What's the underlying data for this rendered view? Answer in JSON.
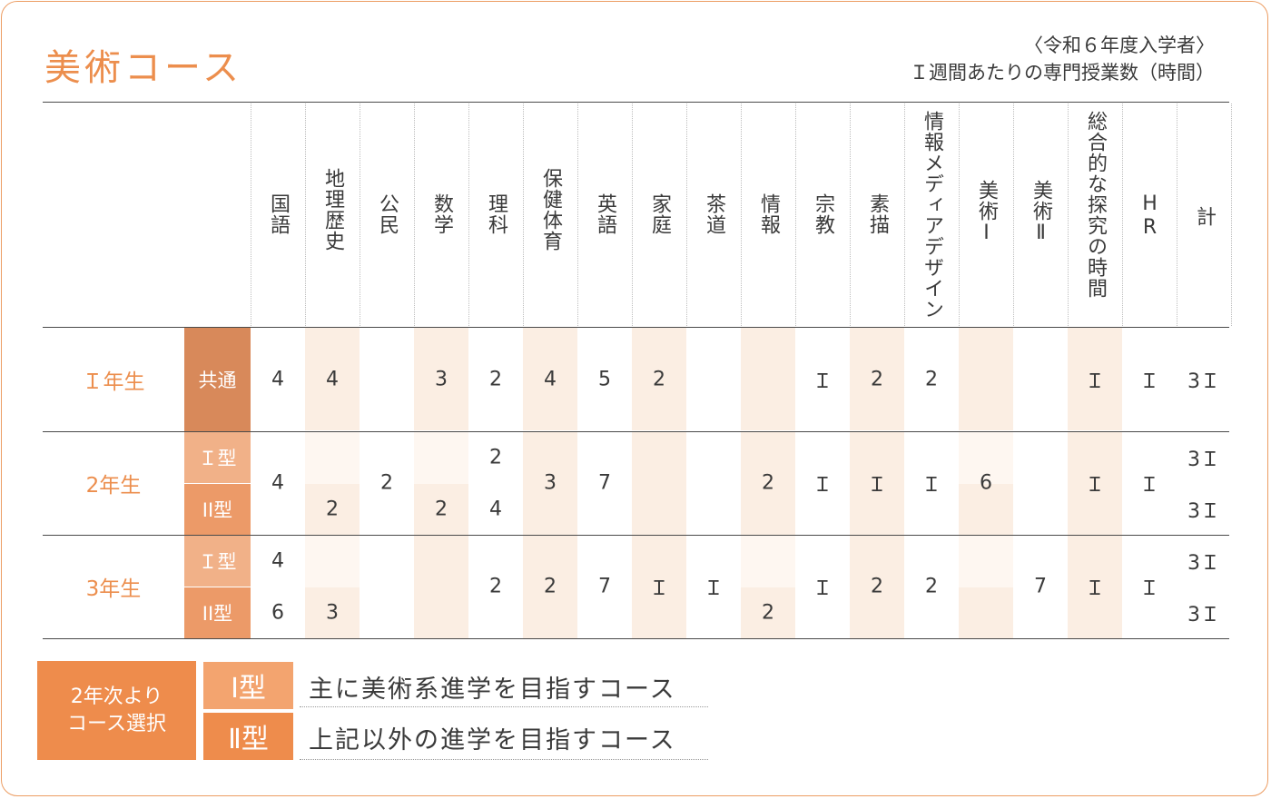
{
  "title": "美術コース",
  "note_line1": "〈令和６年度入学者〉",
  "note_line2": "Ｉ週間あたりの専門授業数（時間）",
  "subjects": [
    "国語",
    "地理歴史",
    "公民",
    "数学",
    "理科",
    "保健体育",
    "英語",
    "家庭",
    "茶道",
    "情報",
    "宗教",
    "素描",
    "情報メディアデザイン",
    "美術Ⅰ",
    "美術Ⅱ",
    "総合的な探究の時間",
    "HR",
    "計"
  ],
  "rows": [
    {
      "grade": "Ｉ年生",
      "type": "共通",
      "values": [
        "4",
        "4",
        "",
        "3",
        "2",
        "4",
        "5",
        "2",
        "",
        "",
        "Ｉ",
        "2",
        "2",
        "",
        "",
        "Ｉ",
        "Ｉ",
        "3Ｉ"
      ]
    },
    {
      "grade": "2年生",
      "type": "Ｉ型",
      "values": [
        "4",
        "",
        "2",
        "",
        "2",
        "3",
        "7",
        "",
        "",
        "2",
        "Ｉ",
        "Ｉ",
        "Ｉ",
        "6",
        "",
        "Ｉ",
        "Ｉ",
        "3Ｉ"
      ]
    },
    {
      "grade": "",
      "type": "ⅠⅠ型",
      "values": [
        "",
        "2",
        "",
        "2",
        "4",
        "",
        "",
        "",
        "",
        "",
        "",
        "",
        "",
        "",
        "",
        "",
        "",
        "3Ｉ"
      ]
    },
    {
      "grade": "3年生",
      "type": "Ｉ型",
      "values": [
        "4",
        "",
        "",
        "",
        "2",
        "2",
        "7",
        "Ｉ",
        "Ｉ",
        "",
        "Ｉ",
        "2",
        "2",
        "",
        "7",
        "Ｉ",
        "Ｉ",
        "3Ｉ"
      ]
    },
    {
      "grade": "",
      "type": "ⅠⅠ型",
      "values": [
        "6",
        "3",
        "",
        "",
        "",
        "",
        "",
        "",
        "",
        "2",
        "",
        "",
        "",
        "",
        "",
        "",
        "",
        "3Ｉ"
      ]
    }
  ],
  "legend": {
    "box_line1": "2年次より",
    "box_line2": "コース選択",
    "items": [
      {
        "type": "Ⅰ型",
        "desc": "主に美術系進学を目指すコース"
      },
      {
        "type": "Ⅱ型",
        "desc": "上記以外の進学を目指すコース"
      }
    ]
  },
  "colors": {
    "accent": "#ec8e4d",
    "band": "#fbeee3",
    "band_light": "#fef7f1",
    "type_common": "#d8895a",
    "type_i": "#f1b188",
    "type_ii": "#ec9a68",
    "legend_box": "#ee8c4c",
    "legend_i": "#f3a46f",
    "legend_ii": "#ee8c4c"
  }
}
